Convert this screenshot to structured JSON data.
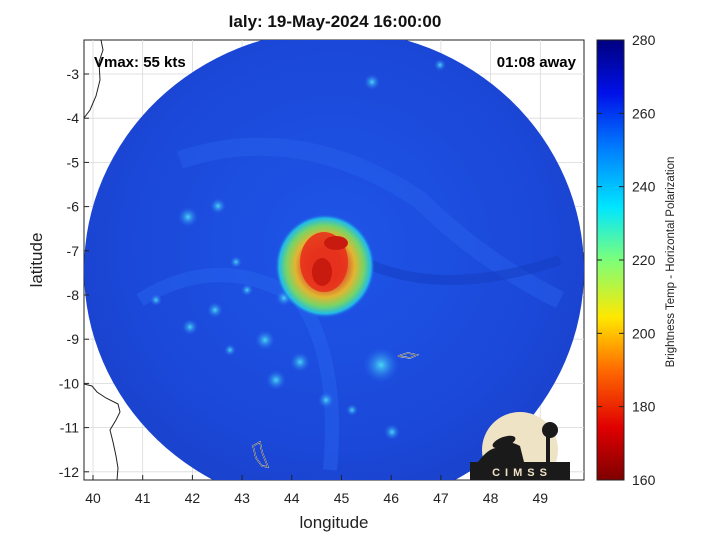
{
  "title": "Ialy: 19-May-2024 16:00:00",
  "overlay": {
    "vmax": "Vmax: 55 kts",
    "time_away": "01:08 away"
  },
  "axes": {
    "xlabel": "longitude",
    "ylabel": "latitude",
    "xticks": [
      "40",
      "41",
      "42",
      "43",
      "44",
      "45",
      "46",
      "47",
      "48",
      "49"
    ],
    "yticks": [
      "-3",
      "-4",
      "-5",
      "-6",
      "-7",
      "-8",
      "-9",
      "-10",
      "-11",
      "-12"
    ]
  },
  "colorbar": {
    "label": "Brightness Temp - Horizontal Polarization",
    "ticks": [
      "280",
      "260",
      "240",
      "220",
      "200",
      "180",
      "160"
    ]
  },
  "logo": {
    "text": "CIMSS"
  },
  "colors": {
    "background_cold": "#1b4fe0",
    "core_warm": "#e8321c",
    "core_yellow": "#f4e01a"
  }
}
